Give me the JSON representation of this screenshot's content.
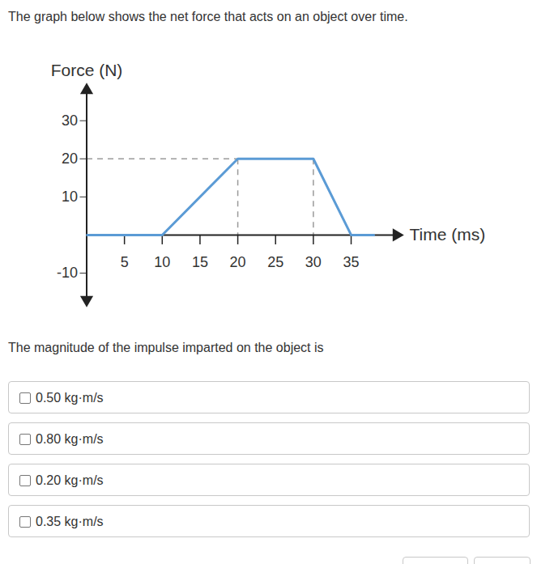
{
  "header": {
    "text": "The graph below shows the net force that acts on an object over time."
  },
  "chart_data": {
    "type": "line",
    "y_label": "Force (N)",
    "x_label": "Time (ms)",
    "x": [
      0,
      10,
      20,
      30,
      35,
      38
    ],
    "values": [
      0,
      0,
      20,
      20,
      0,
      0
    ],
    "color": "#5b9bd5",
    "xlim": [
      0,
      41
    ],
    "ylim": [
      -17,
      38
    ],
    "xticks": [
      5,
      10,
      15,
      20,
      25,
      30,
      35
    ],
    "yticks": [
      -10,
      10,
      20,
      30
    ],
    "reference_lines": [
      {
        "x1": 0,
        "y1": 20,
        "x2": 20,
        "y2": 20
      },
      {
        "x1": 20,
        "y1": 20,
        "x2": 20,
        "y2": 0
      },
      {
        "x1": 30,
        "y1": 20,
        "x2": 30,
        "y2": 0
      }
    ]
  },
  "question": "The magnitude of the impulse imparted on the object is",
  "options": [
    "0.50 kg·m/s",
    "0.80 kg·m/s",
    "0.20 kg·m/s",
    "0.35 kg·m/s"
  ]
}
